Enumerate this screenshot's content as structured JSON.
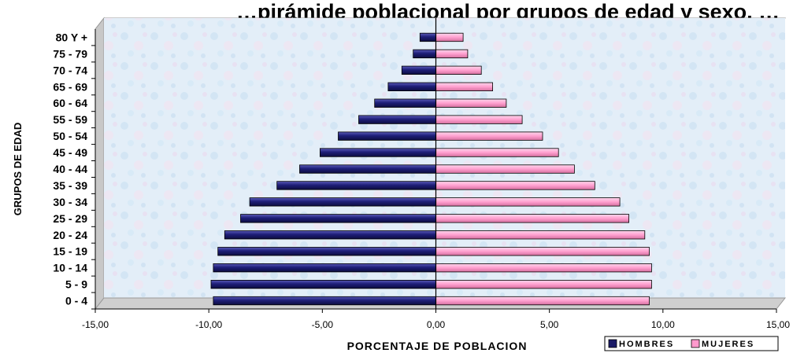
{
  "chart_data": {
    "type": "bar",
    "orientation": "horizontal",
    "title": "…pirámide poblacional por grupos de edad y sexo, …",
    "xlabel": "PORCENTAJE DE POBLACION",
    "ylabel": "GRUPOS DE EDAD",
    "xlim": [
      -15,
      15
    ],
    "x_ticks": [
      -15,
      -10,
      -5,
      0,
      5,
      10,
      15
    ],
    "x_tick_labels": [
      "-15,00",
      "-10,00",
      "-5,00",
      "0,00",
      "5,00",
      "10,00",
      "15,00"
    ],
    "categories": [
      "0 - 4",
      "5 - 9",
      "10 - 14",
      "15 - 19",
      "20 - 24",
      "25 - 29",
      "30 - 34",
      "35 - 39",
      "40 - 44",
      "45 - 49",
      "50 - 54",
      "55 - 59",
      "60 - 64",
      "65 - 69",
      "70 - 74",
      "75 - 79",
      "80 Y +"
    ],
    "series": [
      {
        "name": "HOMBRES",
        "color": "#1a1a66",
        "values": [
          -9.8,
          -9.9,
          -9.8,
          -9.6,
          -9.3,
          -8.6,
          -8.2,
          -7.0,
          -6.0,
          -5.1,
          -4.3,
          -3.4,
          -2.7,
          -2.1,
          -1.5,
          -1.0,
          -0.7
        ]
      },
      {
        "name": "MUJERES",
        "color": "#ff99cc",
        "values": [
          9.4,
          9.5,
          9.5,
          9.4,
          9.2,
          8.5,
          8.1,
          7.0,
          6.1,
          5.4,
          4.7,
          3.8,
          3.1,
          2.5,
          2.0,
          1.4,
          1.2
        ]
      }
    ],
    "grid": false,
    "legend": "bottom-right"
  }
}
